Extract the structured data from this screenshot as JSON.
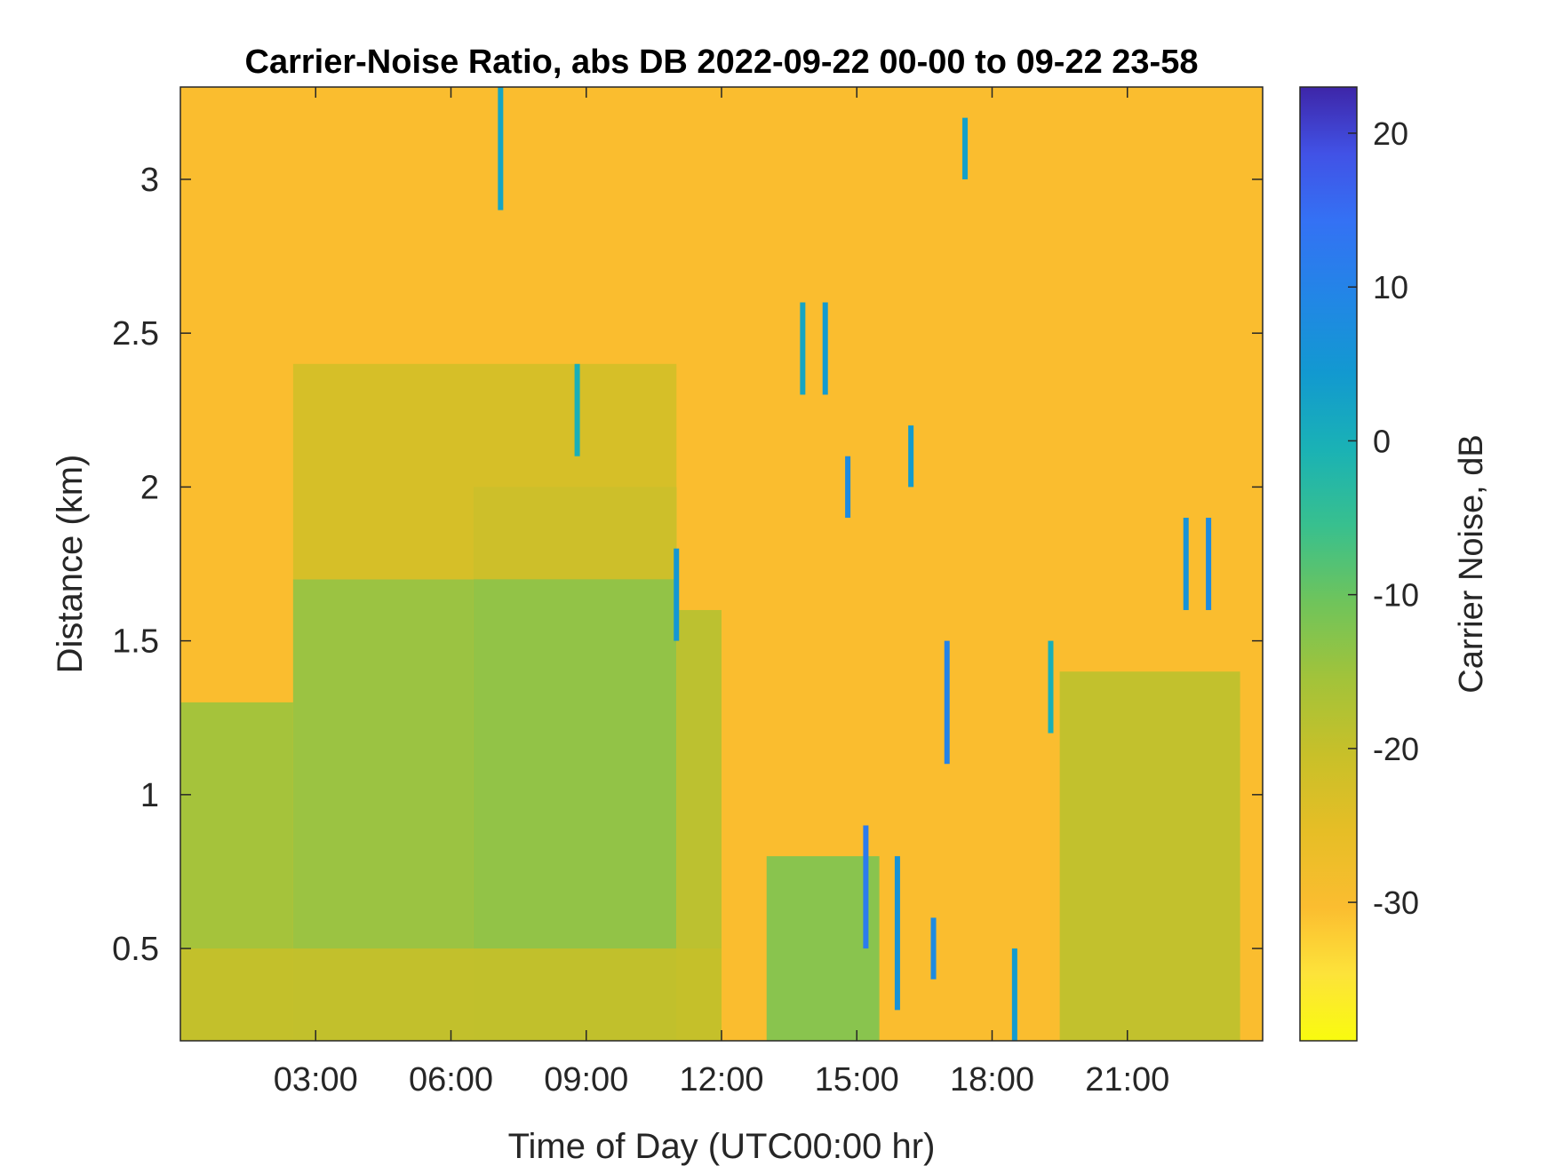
{
  "chart_data": {
    "type": "heatmap",
    "title": "Carrier-Noise Ratio, abs DB 2022-09-22 00-00 to 09-22 23-58",
    "xlabel": "Time of Day (UTC00:00 hr)",
    "ylabel": "Distance (km)",
    "xlim": [
      0,
      24
    ],
    "ylim": [
      0.2,
      3.3
    ],
    "x_ticks": [
      3,
      6,
      9,
      12,
      15,
      18,
      21
    ],
    "x_tick_labels": [
      "03:00",
      "06:00",
      "09:00",
      "12:00",
      "15:00",
      "18:00",
      "21:00"
    ],
    "y_ticks": [
      0.5,
      1,
      1.5,
      2,
      2.5,
      3
    ],
    "y_tick_labels": [
      "0.5",
      "1",
      "1.5",
      "2",
      "2.5",
      "3"
    ],
    "colorbar": {
      "label": "Carrier Noise, dB",
      "range": [
        -39,
        23
      ],
      "ticks": [
        -30,
        -20,
        -10,
        0,
        10,
        20
      ],
      "tick_labels": [
        "-30",
        "-20",
        "-10",
        "0",
        "10",
        "20"
      ],
      "colormap": "parula"
    },
    "field": {
      "background_db": -30,
      "regions": [
        {
          "x": [
            0,
            2.5
          ],
          "y": [
            0.2,
            1.3
          ],
          "db": -15
        },
        {
          "x": [
            2.5,
            6.5
          ],
          "y": [
            0.2,
            1.7
          ],
          "db": -14
        },
        {
          "x": [
            6.5,
            11
          ],
          "y": [
            0.2,
            2.0
          ],
          "db": -13
        },
        {
          "x": [
            2.5,
            11
          ],
          "y": [
            1.7,
            2.4
          ],
          "db": -22
        },
        {
          "x": [
            11,
            12
          ],
          "y": [
            0.2,
            1.6
          ],
          "db": -18
        },
        {
          "x": [
            13,
            15.5
          ],
          "y": [
            0.2,
            0.8
          ],
          "db": -12
        },
        {
          "x": [
            19.5,
            23.5
          ],
          "y": [
            0.2,
            1.4
          ],
          "db": -19
        },
        {
          "x": [
            0,
            12
          ],
          "y": [
            0.2,
            0.5
          ],
          "db": -20
        }
      ],
      "streaks": [
        {
          "x": 7.1,
          "y": [
            2.9,
            3.3
          ],
          "db": 2
        },
        {
          "x": 8.8,
          "y": [
            2.1,
            2.4
          ],
          "db": 0
        },
        {
          "x": 11.0,
          "y": [
            1.5,
            1.8
          ],
          "db": 5
        },
        {
          "x": 13.8,
          "y": [
            2.3,
            2.6
          ],
          "db": 2
        },
        {
          "x": 14.3,
          "y": [
            2.3,
            2.6
          ],
          "db": 4
        },
        {
          "x": 14.8,
          "y": [
            1.9,
            2.1
          ],
          "db": 8
        },
        {
          "x": 15.2,
          "y": [
            0.5,
            0.9
          ],
          "db": 12
        },
        {
          "x": 15.9,
          "y": [
            0.3,
            0.8
          ],
          "db": 6
        },
        {
          "x": 16.2,
          "y": [
            2.0,
            2.2
          ],
          "db": 4
        },
        {
          "x": 16.7,
          "y": [
            0.4,
            0.6
          ],
          "db": 8
        },
        {
          "x": 17.0,
          "y": [
            1.1,
            1.5
          ],
          "db": 10
        },
        {
          "x": 17.4,
          "y": [
            3.0,
            3.2
          ],
          "db": 3
        },
        {
          "x": 18.5,
          "y": [
            0.2,
            0.5
          ],
          "db": 4
        },
        {
          "x": 19.3,
          "y": [
            1.2,
            1.5
          ],
          "db": 0
        },
        {
          "x": 22.3,
          "y": [
            1.6,
            1.9
          ],
          "db": 6
        },
        {
          "x": 22.8,
          "y": [
            1.6,
            1.9
          ],
          "db": 8
        }
      ]
    }
  }
}
